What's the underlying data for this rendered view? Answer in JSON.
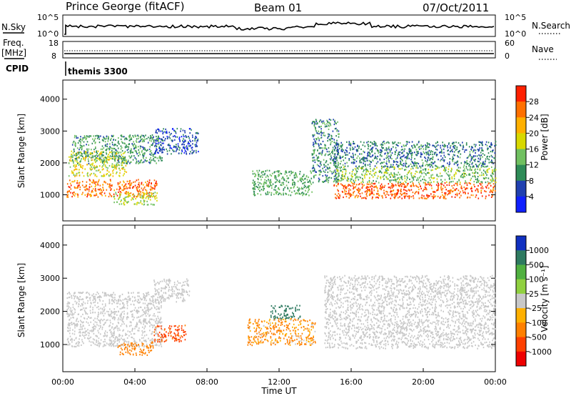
{
  "header": {
    "station": "Prince George (fitACF)",
    "beam": "Beam 01",
    "date": "07/Oct/2011"
  },
  "panels": {
    "nsky": {
      "left_label": "N.Sky",
      "left_ticks": [
        "10^5",
        "10^0"
      ],
      "right_ticks": [
        "10^5",
        "10^0"
      ],
      "right_label": "N.Search"
    },
    "freq": {
      "left_label_1": "Freq.",
      "left_label_2": "[MHz]",
      "left_ticks": [
        "18",
        "8"
      ],
      "right_ticks": [
        "60",
        "0"
      ],
      "right_label": "Nave"
    },
    "cpid": {
      "left_label": "CPID",
      "program": "themis 3300"
    }
  },
  "chart_data": [
    {
      "type": "heatmap",
      "quantity": "Power",
      "colorbar_label": "Power [dB]",
      "ylabel": "Slant Range [km]",
      "xlabel": "Time UT",
      "xlim_hours": [
        0,
        24
      ],
      "ylim_km": [
        180,
        4600
      ],
      "y_ticks": [
        1000,
        2000,
        3000,
        4000
      ],
      "x_tick_labels": [
        "00:00",
        "04:00",
        "08:00",
        "12:00",
        "16:00",
        "20:00",
        "00:00"
      ],
      "colorbar_ticks": [
        4,
        8,
        12,
        16,
        20,
        24,
        28
      ],
      "colorbar_colors": [
        "#1020ff",
        "#2040b0",
        "#2e8b57",
        "#70c060",
        "#d8d800",
        "#ffb000",
        "#ff7000",
        "#ff2000"
      ],
      "regions": [
        {
          "t0": 0.2,
          "t1": 5.2,
          "r0": 950,
          "r1": 1500,
          "level": 26
        },
        {
          "t0": 0.3,
          "t1": 3.5,
          "r0": 1600,
          "r1": 2400,
          "level": 18
        },
        {
          "t0": 0.5,
          "t1": 5.5,
          "r0": 2000,
          "r1": 2900,
          "level": 11
        },
        {
          "t0": 5.0,
          "t1": 7.5,
          "r0": 2300,
          "r1": 3100,
          "level": 6
        },
        {
          "t0": 2.8,
          "t1": 5.2,
          "r0": 700,
          "r1": 1100,
          "level": 16
        },
        {
          "t0": 10.5,
          "t1": 13.8,
          "r0": 1000,
          "r1": 1800,
          "level": 12
        },
        {
          "t0": 13.8,
          "t1": 15.3,
          "r0": 1400,
          "r1": 3400,
          "level": 10
        },
        {
          "t0": 15.0,
          "t1": 24.0,
          "r0": 900,
          "r1": 1400,
          "level": 27
        },
        {
          "t0": 15.0,
          "t1": 24.0,
          "r0": 1400,
          "r1": 1900,
          "level": 14
        },
        {
          "t0": 15.0,
          "t1": 24.0,
          "r0": 1900,
          "r1": 2700,
          "level": 9
        }
      ]
    },
    {
      "type": "heatmap",
      "quantity": "Velocity",
      "colorbar_label": "Velocity [m s⁻¹]",
      "ylabel": "Slant Range [km]",
      "xlabel": "Time UT",
      "xlim_hours": [
        0,
        24
      ],
      "ylim_km": [
        180,
        4600
      ],
      "y_ticks": [
        1000,
        2000,
        3000,
        4000
      ],
      "x_tick_labels": [
        "00:00",
        "04:00",
        "08:00",
        "12:00",
        "16:00",
        "20:00",
        "00:00"
      ],
      "colorbar_ticks": [
        "1000",
        "500",
        "100",
        "25",
        "-25",
        "-100",
        "-500",
        "-1000"
      ],
      "colorbar_colors": [
        "#1030c0",
        "#2e7a60",
        "#50b040",
        "#90d040",
        "#c8c8c8",
        "#ffb000",
        "#ff8000",
        "#ff4000",
        "#ee0000"
      ],
      "regions": [
        {
          "t0": 0.2,
          "t1": 5.5,
          "r0": 950,
          "r1": 2600,
          "level": 0
        },
        {
          "t0": 5.0,
          "t1": 7.0,
          "r0": 2300,
          "r1": 3000,
          "level": 0
        },
        {
          "t0": 3.0,
          "t1": 5.0,
          "r0": 700,
          "r1": 1100,
          "level": -250
        },
        {
          "t0": 5.0,
          "t1": 6.8,
          "r0": 1100,
          "r1": 1600,
          "level": -600
        },
        {
          "t0": 10.2,
          "t1": 14.0,
          "r0": 1000,
          "r1": 1800,
          "level": -150
        },
        {
          "t0": 11.5,
          "t1": 13.2,
          "r0": 1800,
          "r1": 2200,
          "level": 800
        },
        {
          "t0": 14.5,
          "t1": 24.0,
          "r0": 900,
          "r1": 3100,
          "level": 0
        }
      ]
    }
  ]
}
